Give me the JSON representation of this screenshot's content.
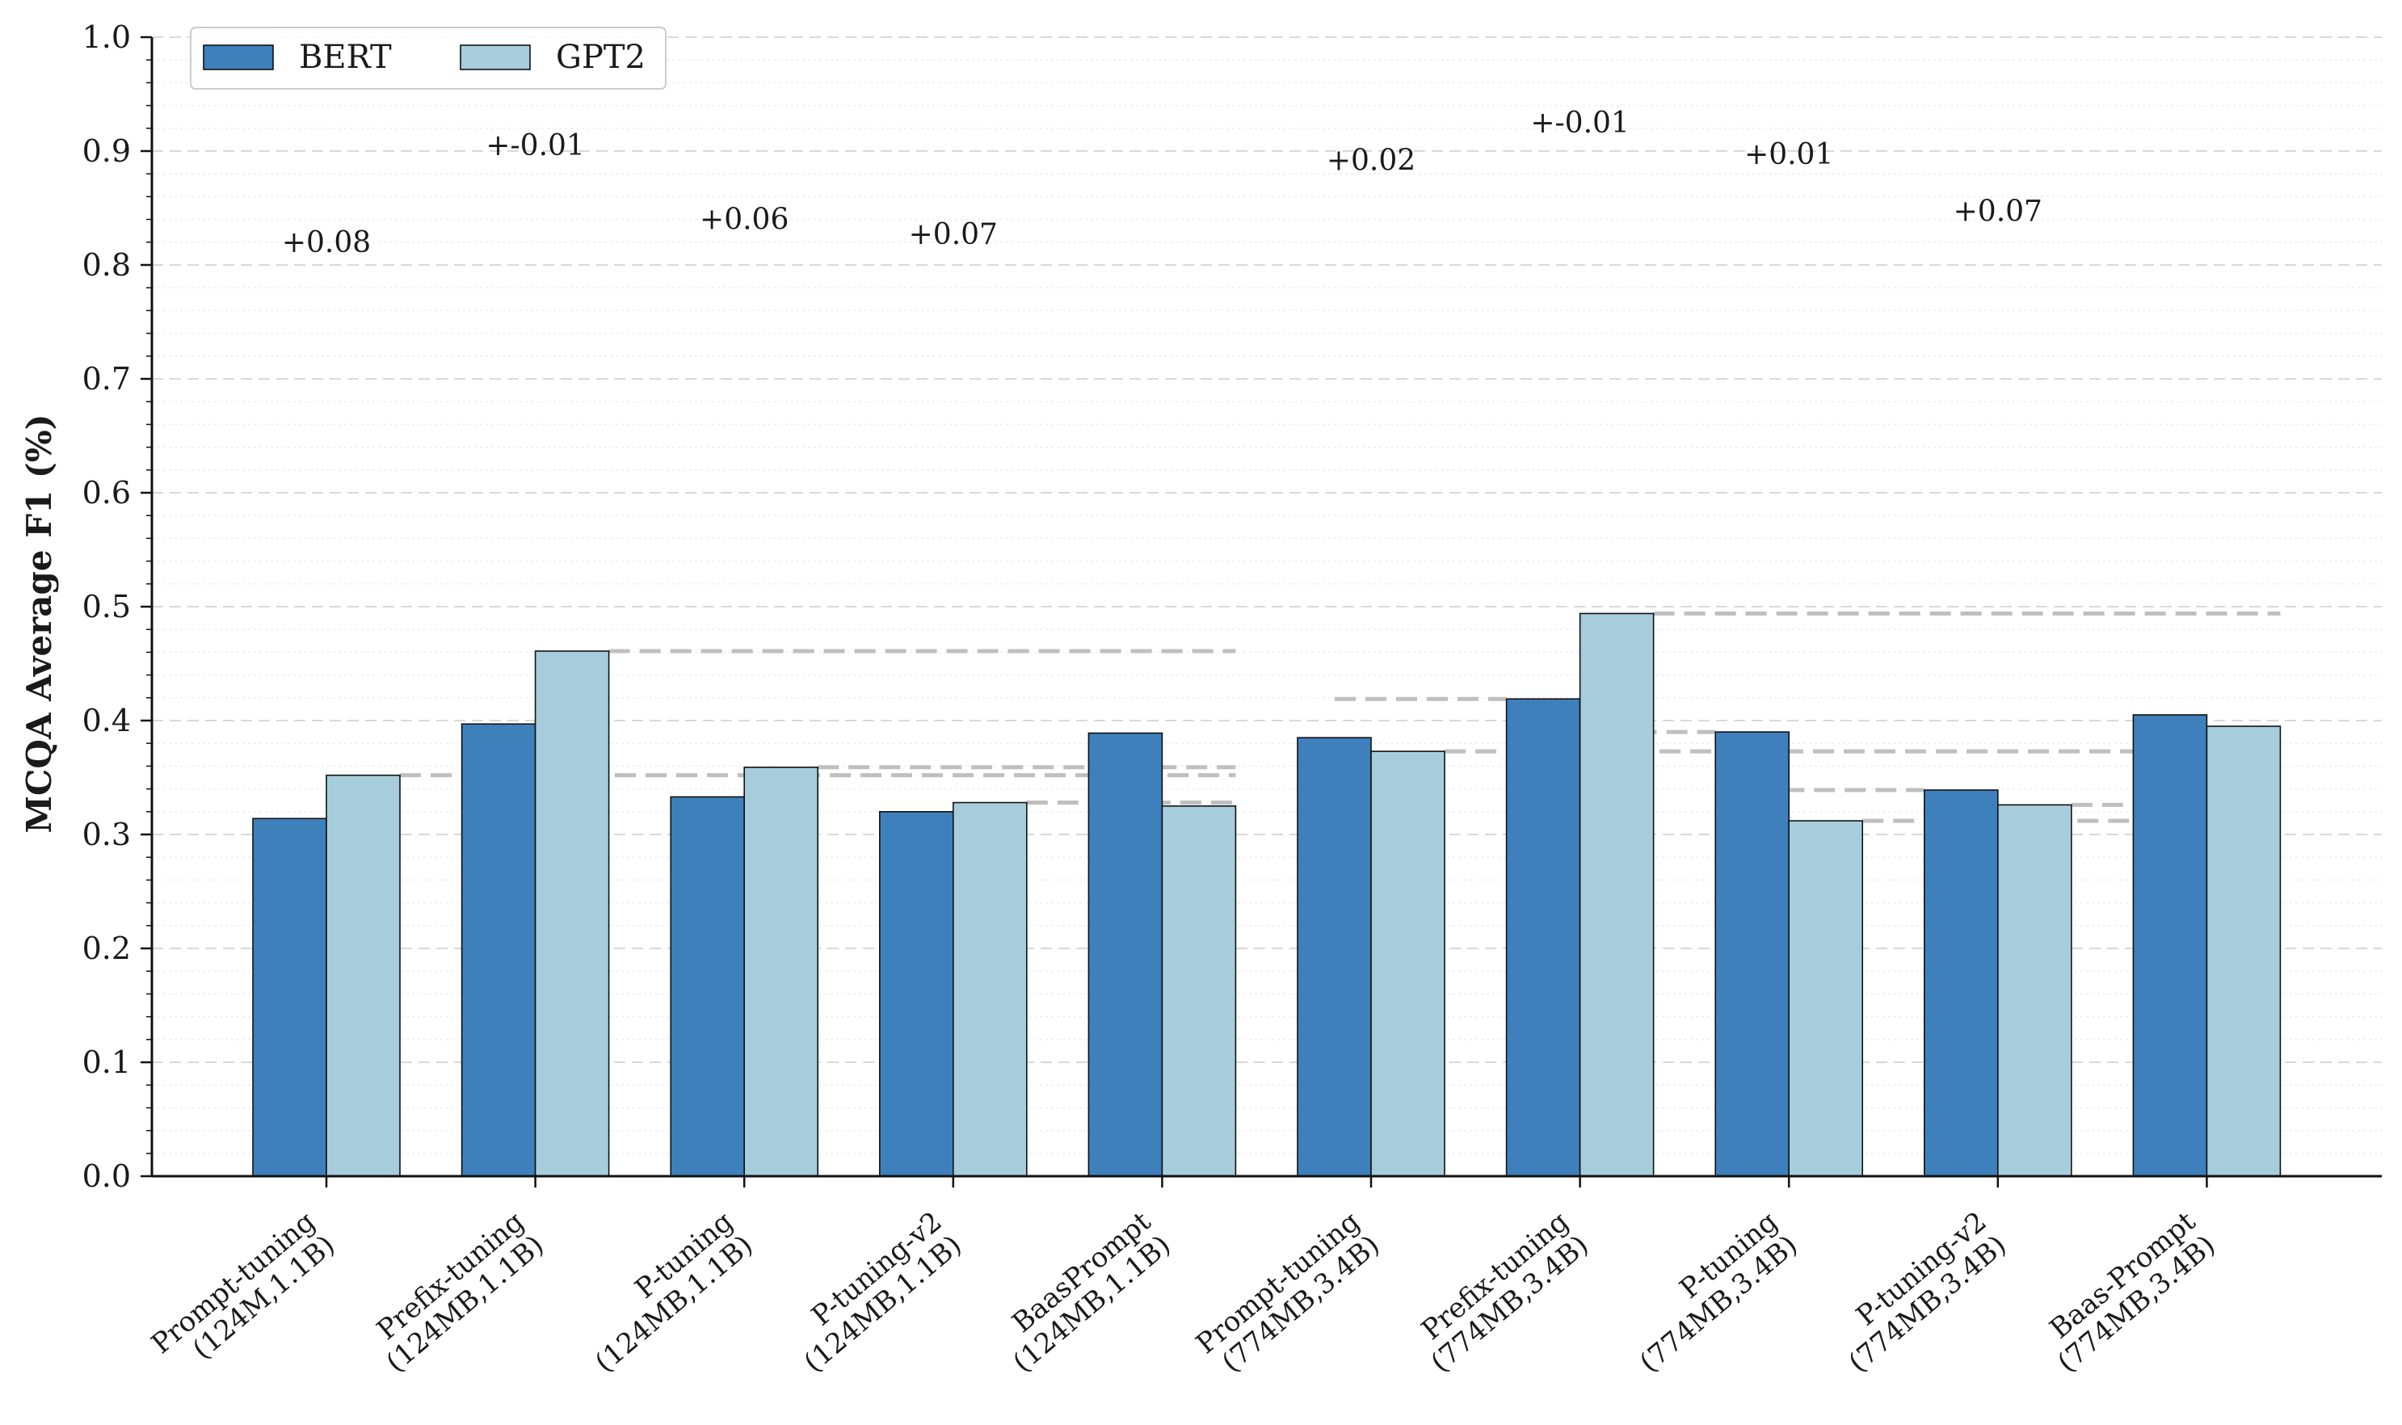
{
  "chart_data": {
    "type": "bar",
    "ylabel": "MCQA Average F1 (%)",
    "xlabel": "",
    "ylim": [
      0,
      1.0
    ],
    "yticks": [
      "0.0",
      "0.1",
      "0.2",
      "0.3",
      "0.4",
      "0.5",
      "0.6",
      "0.7",
      "0.8",
      "0.9",
      "1.0"
    ],
    "grid": "horizontal dashed",
    "legend_position": "top-left",
    "categories": [
      [
        "Prompt-tuning",
        "(124M,1.1B)"
      ],
      [
        "Prefix-tuning",
        "(124MB,1.1B)"
      ],
      [
        "P-tuning",
        "(124MB,1.1B)"
      ],
      [
        "P-tuning-v2",
        "(124MB,1.1B)"
      ],
      [
        "BaasPrompt",
        "(124MB,1.1B)"
      ],
      [
        "Prompt-tuning",
        "(774MB,3.4B)"
      ],
      [
        "Prefix-tuning",
        "(774MB,3.4B)"
      ],
      [
        "P-tuning",
        "(774MB,3.4B)"
      ],
      [
        "P-tuning-v2",
        "(774MB,3.4B)"
      ],
      [
        "Baas-Prompt",
        "(774MB,3.4B)"
      ]
    ],
    "series": [
      {
        "name": "BERT",
        "color": "#3d80bb",
        "values": [
          0.314,
          0.397,
          0.333,
          0.32,
          0.389,
          0.385,
          0.419,
          0.39,
          0.339,
          0.405
        ]
      },
      {
        "name": "GPT2",
        "color": "#a7cddc",
        "values": [
          0.352,
          0.461,
          0.359,
          0.328,
          0.325,
          0.373,
          0.494,
          0.312,
          0.326,
          0.395
        ]
      }
    ],
    "annotations": [
      {
        "text": "+0.08",
        "y": 0.82
      },
      {
        "text": "+-0.01",
        "y": 0.905
      },
      {
        "text": "+0.06",
        "y": 0.84
      },
      {
        "text": "+0.07",
        "y": 0.827
      },
      {
        "text": "+0.02",
        "y": 0.892
      },
      {
        "text": "+-0.01",
        "y": 0.925
      },
      {
        "text": "+0.01",
        "y": 0.897
      },
      {
        "text": "+0.07",
        "y": 0.847
      }
    ],
    "reference_lines_color": "#bfbfbf"
  }
}
